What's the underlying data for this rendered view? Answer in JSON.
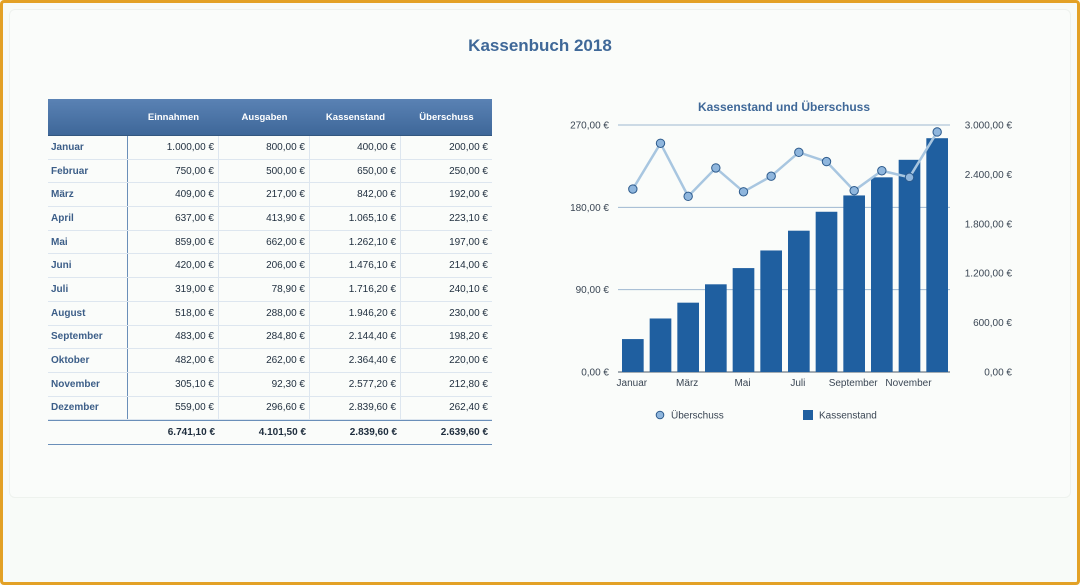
{
  "page": {
    "title": "Kassenbuch 2018"
  },
  "table": {
    "headers": [
      "",
      "Einnahmen",
      "Ausgaben",
      "Kassenstand",
      "Überschuss"
    ],
    "rows": [
      [
        "Januar",
        "1.000,00 €",
        "800,00 €",
        "400,00 €",
        "200,00 €"
      ],
      [
        "Februar",
        "750,00 €",
        "500,00 €",
        "650,00 €",
        "250,00 €"
      ],
      [
        "März",
        "409,00 €",
        "217,00 €",
        "842,00 €",
        "192,00 €"
      ],
      [
        "April",
        "637,00 €",
        "413,90 €",
        "1.065,10 €",
        "223,10 €"
      ],
      [
        "Mai",
        "859,00 €",
        "662,00 €",
        "1.262,10 €",
        "197,00 €"
      ],
      [
        "Juni",
        "420,00 €",
        "206,00 €",
        "1.476,10 €",
        "214,00 €"
      ],
      [
        "Juli",
        "319,00 €",
        "78,90 €",
        "1.716,20 €",
        "240,10 €"
      ],
      [
        "August",
        "518,00 €",
        "288,00 €",
        "1.946,20 €",
        "230,00 €"
      ],
      [
        "September",
        "483,00 €",
        "284,80 €",
        "2.144,40 €",
        "198,20 €"
      ],
      [
        "Oktober",
        "482,00 €",
        "262,00 €",
        "2.364,40 €",
        "220,00 €"
      ],
      [
        "November",
        "305,10 €",
        "92,30 €",
        "2.577,20 €",
        "212,80 €"
      ],
      [
        "Dezember",
        "559,00 €",
        "296,60 €",
        "2.839,60 €",
        "262,40 €"
      ]
    ],
    "totals": [
      "",
      "6.741,10 €",
      "4.101,50 €",
      "2.839,60 €",
      "2.639,60 €"
    ]
  },
  "chart_data": {
    "type": "bar",
    "title": "Kassenstand und Überschuss",
    "categories": [
      "Januar",
      "Februar",
      "März",
      "April",
      "Mai",
      "Juni",
      "Juli",
      "August",
      "September",
      "Oktober",
      "November",
      "Dezember"
    ],
    "x_tick_labels": [
      "Januar",
      "März",
      "Mai",
      "Juli",
      "September",
      "November"
    ],
    "series": [
      {
        "name": "Überschuss",
        "type": "line",
        "axis": "left",
        "color": "#a8c6e0",
        "marker_color": "#8fb6dd",
        "values": [
          200.0,
          250.0,
          192.0,
          223.1,
          197.0,
          214.0,
          240.1,
          230.0,
          198.2,
          220.0,
          212.8,
          262.4
        ]
      },
      {
        "name": "Kassenstand",
        "type": "bar",
        "axis": "right",
        "color": "#1f5fa0",
        "values": [
          400.0,
          650.0,
          842.0,
          1065.1,
          1262.1,
          1476.1,
          1716.2,
          1946.2,
          2144.4,
          2364.4,
          2577.2,
          2839.6
        ]
      }
    ],
    "left_axis": {
      "ticks": [
        "0,00 €",
        "90,00 €",
        "180,00 €",
        "270,00 €"
      ],
      "ylim": [
        0,
        270
      ]
    },
    "right_axis": {
      "ticks": [
        "0,00 €",
        "600,00 €",
        "1.200,00 €",
        "1.800,00 €",
        "2.400,00 €",
        "3.000,00 €"
      ],
      "ylim": [
        0,
        3000
      ]
    },
    "grid": true,
    "legend": "bottom"
  }
}
